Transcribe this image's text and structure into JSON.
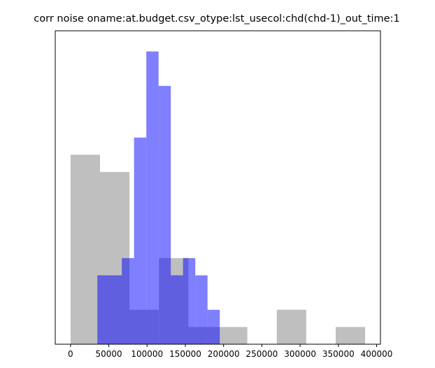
{
  "chart_data": {
    "type": "histogram",
    "title": "corr noise oname:at.budget.csv_otype:lst_usecol:chd(chd-1)_out_time:1",
    "xlabel": "",
    "ylabel": "",
    "xlim": [
      -20000,
      405000
    ],
    "ylim": [
      0,
      18.2
    ],
    "x_ticks": [
      0,
      50000,
      100000,
      150000,
      200000,
      250000,
      300000,
      350000,
      400000
    ],
    "x_tick_labels": [
      "0",
      "50000",
      "100000",
      "150000",
      "200000",
      "250000",
      "300000",
      "350000",
      "400000"
    ],
    "y_ticks_visible": false,
    "grid": false,
    "legend": "none",
    "series": [
      {
        "color": "#bfbfbf",
        "bins": [
          {
            "x0": 0,
            "x1": 38500,
            "count": 11
          },
          {
            "x0": 38500,
            "x1": 77000,
            "count": 10
          },
          {
            "x0": 77000,
            "x1": 115500,
            "count": 2
          },
          {
            "x0": 115500,
            "x1": 154000,
            "count": 5
          },
          {
            "x0": 154000,
            "x1": 192500,
            "count": 1
          },
          {
            "x0": 192500,
            "x1": 231000,
            "count": 1
          },
          {
            "x0": 231000,
            "x1": 269500,
            "count": 0
          },
          {
            "x0": 269500,
            "x1": 308000,
            "count": 2
          },
          {
            "x0": 308000,
            "x1": 346500,
            "count": 0
          },
          {
            "x0": 346500,
            "x1": 385000,
            "count": 1
          }
        ]
      },
      {
        "color": "#0000ff",
        "opacity": 0.5,
        "bins": [
          {
            "x0": 35000,
            "x1": 67000,
            "count": 4
          },
          {
            "x0": 67000,
            "x1": 83000,
            "count": 5
          },
          {
            "x0": 83000,
            "x1": 99000,
            "count": 12
          },
          {
            "x0": 99000,
            "x1": 115000,
            "count": 17
          },
          {
            "x0": 115000,
            "x1": 131000,
            "count": 15
          },
          {
            "x0": 131000,
            "x1": 147000,
            "count": 4
          },
          {
            "x0": 147000,
            "x1": 163000,
            "count": 5
          },
          {
            "x0": 163000,
            "x1": 179000,
            "count": 4
          },
          {
            "x0": 179000,
            "x1": 195000,
            "count": 2
          }
        ]
      }
    ]
  }
}
